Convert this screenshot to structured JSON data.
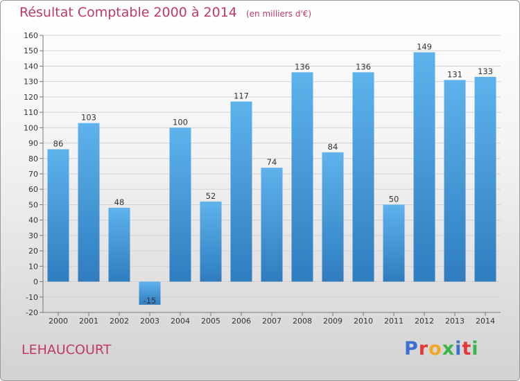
{
  "header": {
    "title": "Résultat Comptable 2000 à 2014",
    "subtitle": "(en milliers d'€)"
  },
  "footer": {
    "commune": "LEHAUCOURT",
    "logo_text": "Proxiti"
  },
  "colors": {
    "title": "#c0386a",
    "bar_light": "#5fb2ec",
    "bar_dark": "#2f7dbf",
    "logo_letters": [
      "#3c6fd1",
      "#e53935",
      "#f5a623",
      "#39b54a",
      "#3c6fd1",
      "#e53935",
      "#39b54a"
    ]
  },
  "chart_data": {
    "type": "bar",
    "title": "Résultat Comptable 2000 à 2014",
    "subtitle": "(en milliers d'€)",
    "categories": [
      "2000",
      "2001",
      "2002",
      "2003",
      "2004",
      "2005",
      "2006",
      "2007",
      "2008",
      "2009",
      "2010",
      "2011",
      "2012",
      "2013",
      "2014"
    ],
    "values": [
      86,
      103,
      48,
      -15,
      100,
      52,
      117,
      74,
      136,
      84,
      136,
      50,
      149,
      131,
      133
    ],
    "ylim": [
      -20,
      160
    ],
    "yticks": [
      -20,
      -10,
      0,
      10,
      20,
      30,
      40,
      50,
      60,
      70,
      80,
      90,
      100,
      110,
      120,
      130,
      140,
      150,
      160
    ],
    "grid": true,
    "legend": "none"
  }
}
